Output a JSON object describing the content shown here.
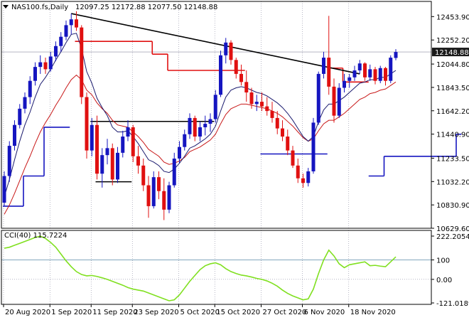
{
  "header": {
    "symbol_label": "NAS100.fs,Daily",
    "ohlc_label": "12097.25 12172.88 12077.50 12148.88"
  },
  "indicator": {
    "label": "CCI(40) 115.7224"
  },
  "colors": {
    "bull": "#1515c0",
    "bear": "#e01010",
    "grid": "#8a8aa0",
    "cci": "#80e020",
    "trendline": "#000000",
    "ema_fast": "#1a1a6e",
    "ema_slow": "#c81818",
    "tag_bg": "#1a1a1a",
    "tag_fg": "#ffffff"
  },
  "chart_data": [
    {
      "type": "candlestick",
      "price_axis": {
        "ticks": [
          "12453.90",
          "12252.20",
          "12044.80",
          "11843.50",
          "11642.20",
          "11440.90",
          "11233.50",
          "11032.20",
          "10830.90",
          "10629.60"
        ],
        "current_price": "12148.88",
        "range": [
          10629.6,
          12560
        ]
      },
      "date_axis": {
        "labels": [
          "20 Aug 2020",
          "1 Sep 2020",
          "11 Sep 2020",
          "23 Sep 2020",
          "5 Oct 2020",
          "15 Oct 2020",
          "27 Oct 2020",
          "6 Nov 2020",
          "18 Nov 2020"
        ]
      },
      "candles": [
        [
          10850,
          11120,
          10820,
          11080
        ],
        [
          11080,
          11380,
          11030,
          11340
        ],
        [
          11340,
          11560,
          11300,
          11520
        ],
        [
          11520,
          11700,
          11490,
          11660
        ],
        [
          11660,
          11800,
          11620,
          11760
        ],
        [
          11760,
          11940,
          11700,
          11900
        ],
        [
          11900,
          12060,
          11860,
          12020
        ],
        [
          12020,
          12120,
          11960,
          12060
        ],
        [
          12060,
          12100,
          11960,
          12000
        ],
        [
          12000,
          12150,
          11980,
          12110
        ],
        [
          12110,
          12240,
          12070,
          12200
        ],
        [
          12200,
          12320,
          12150,
          12280
        ],
        [
          12280,
          12420,
          12250,
          12380
        ],
        [
          12380,
          12480,
          12300,
          12430
        ],
        [
          12430,
          12500,
          12330,
          12360
        ],
        [
          12360,
          12380,
          11700,
          11760
        ],
        [
          11760,
          11800,
          11230,
          11300
        ],
        [
          11300,
          11580,
          11250,
          11520
        ],
        [
          11520,
          11600,
          11050,
          11100
        ],
        [
          11100,
          11320,
          10980,
          11260
        ],
        [
          11260,
          11400,
          11180,
          11320
        ],
        [
          11320,
          11360,
          11000,
          11050
        ],
        [
          11050,
          11330,
          11020,
          11280
        ],
        [
          11280,
          11470,
          11240,
          11420
        ],
        [
          11420,
          11560,
          11380,
          11500
        ],
        [
          11500,
          11520,
          11200,
          11250
        ],
        [
          11250,
          11340,
          11100,
          11170
        ],
        [
          11170,
          11230,
          10950,
          11000
        ],
        [
          11000,
          11080,
          10720,
          10820
        ],
        [
          10820,
          11120,
          10800,
          11070
        ],
        [
          11070,
          11120,
          10880,
          10950
        ],
        [
          10950,
          11060,
          10700,
          10790
        ],
        [
          10790,
          11030,
          10760,
          11000
        ],
        [
          11000,
          11280,
          10980,
          11230
        ],
        [
          11230,
          11380,
          11190,
          11330
        ],
        [
          11330,
          11480,
          11300,
          11440
        ],
        [
          11440,
          11620,
          11400,
          11580
        ],
        [
          11580,
          11600,
          11380,
          11420
        ],
        [
          11420,
          11550,
          11380,
          11500
        ],
        [
          11500,
          11600,
          11430,
          11530
        ],
        [
          11530,
          11620,
          11460,
          11570
        ],
        [
          11570,
          11820,
          11540,
          11780
        ],
        [
          11780,
          12160,
          11760,
          12120
        ],
        [
          12120,
          12270,
          12050,
          12230
        ],
        [
          12230,
          12250,
          12040,
          12080
        ],
        [
          12080,
          12100,
          11920,
          11960
        ],
        [
          11960,
          12040,
          11860,
          11890
        ],
        [
          11890,
          11990,
          11720,
          11800
        ],
        [
          11800,
          11840,
          11660,
          11700
        ],
        [
          11700,
          11780,
          11640,
          11720
        ],
        [
          11720,
          11800,
          11640,
          11680
        ],
        [
          11680,
          11760,
          11600,
          11640
        ],
        [
          11640,
          11720,
          11540,
          11580
        ],
        [
          11580,
          11640,
          11440,
          11490
        ],
        [
          11490,
          11560,
          11380,
          11420
        ],
        [
          11420,
          11480,
          11260,
          11300
        ],
        [
          11300,
          11340,
          11150,
          11170
        ],
        [
          11170,
          11230,
          11020,
          11060
        ],
        [
          11060,
          11100,
          10980,
          11020
        ],
        [
          11020,
          11150,
          10990,
          11120
        ],
        [
          11120,
          11580,
          11100,
          11540
        ],
        [
          11540,
          11980,
          11520,
          11960
        ],
        [
          11960,
          12150,
          11920,
          12100
        ],
        [
          12100,
          12460,
          11780,
          11850
        ],
        [
          11850,
          11920,
          11540,
          11600
        ],
        [
          11600,
          11880,
          11580,
          11840
        ],
        [
          11840,
          11960,
          11800,
          11900
        ],
        [
          11900,
          11960,
          11840,
          11930
        ],
        [
          11930,
          12030,
          11900,
          11990
        ],
        [
          11990,
          12080,
          11960,
          12050
        ],
        [
          12050,
          12060,
          11900,
          11930
        ],
        [
          11930,
          12040,
          11900,
          12000
        ],
        [
          12000,
          12020,
          11870,
          11900
        ],
        [
          11900,
          12030,
          11880,
          12010
        ],
        [
          12010,
          12020,
          11860,
          11900
        ],
        [
          11900,
          12120,
          11880,
          12100
        ],
        [
          12097.25,
          12172.88,
          12077.5,
          12148.88
        ]
      ],
      "trendline": {
        "from": [
          13,
          12480
        ],
        "to": [
          69,
          11960
        ]
      },
      "ema_fast": [
        10900,
        11050,
        11220,
        11380,
        11520,
        11630,
        11760,
        11870,
        11930,
        12000,
        12080,
        12150,
        12230,
        12300,
        12310,
        12180,
        11980,
        11880,
        11750,
        11670,
        11600,
        11500,
        11460,
        11460,
        11470,
        11420,
        11360,
        11290,
        11220,
        11200,
        11170,
        11120,
        11110,
        11140,
        11190,
        11250,
        11320,
        11340,
        11370,
        11400,
        11440,
        11510,
        11640,
        11760,
        11820,
        11840,
        11850,
        11840,
        11820,
        11800,
        11790,
        11770,
        11740,
        11710,
        11670,
        11620,
        11560,
        11490,
        11420,
        11380,
        11420,
        11550,
        11650,
        11700,
        11700,
        11730,
        11760,
        11800,
        11840,
        11880,
        11890,
        11910,
        11910,
        11930,
        11930,
        11960,
        11990
      ],
      "ema_slow": [
        10750,
        10830,
        10930,
        11040,
        11150,
        11250,
        11360,
        11460,
        11540,
        11610,
        11690,
        11760,
        11840,
        11910,
        11950,
        11910,
        11820,
        11780,
        11710,
        11660,
        11620,
        11560,
        11520,
        11510,
        11500,
        11460,
        11420,
        11370,
        11310,
        11280,
        11250,
        11200,
        11180,
        11190,
        11210,
        11240,
        11290,
        11310,
        11330,
        11360,
        11390,
        11440,
        11530,
        11610,
        11660,
        11680,
        11700,
        11700,
        11690,
        11680,
        11670,
        11660,
        11640,
        11620,
        11590,
        11550,
        11510,
        11460,
        11410,
        11380,
        11400,
        11470,
        11530,
        11560,
        11560,
        11590,
        11620,
        11660,
        11700,
        11740,
        11760,
        11790,
        11800,
        11820,
        11830,
        11860,
        11890
      ],
      "resistance_steps": [
        {
          "from": 14,
          "to": 29,
          "level": 12240
        },
        {
          "from": 29,
          "to": 32,
          "level": 12130
        },
        {
          "from": 32,
          "to": 47,
          "level": 11990
        },
        {
          "from": 63,
          "to": 66,
          "level": 12010
        },
        {
          "from": 66,
          "to": 71,
          "level": 11890
        }
      ],
      "support_steps": [
        {
          "from": 0,
          "to": 4,
          "level": 10820
        },
        {
          "from": 4,
          "to": 8,
          "level": 11080
        },
        {
          "from": 8,
          "to": 13,
          "level": 11500
        },
        {
          "from": 50,
          "to": 63,
          "level": 11270
        },
        {
          "from": 71,
          "to": 74,
          "level": 11080
        },
        {
          "from": 74,
          "to": 88,
          "level": 11250
        },
        {
          "from": 88,
          "to": 89,
          "level": 11440
        }
      ],
      "support_zones": [
        {
          "from": 17,
          "to": 41,
          "level": 11550
        },
        {
          "from": 18,
          "to": 25,
          "level": 11030
        }
      ]
    },
    {
      "type": "line",
      "name": "CCI(40)",
      "y_axis": {
        "ticks": [
          "222.2054",
          "100",
          "0.00",
          "-121.0189"
        ],
        "range": [
          -121.0189,
          222.2054
        ]
      },
      "values": [
        160,
        165,
        175,
        185,
        195,
        205,
        215,
        222,
        210,
        190,
        165,
        130,
        95,
        65,
        40,
        25,
        18,
        20,
        15,
        8,
        0,
        -10,
        -20,
        -30,
        -42,
        -50,
        -55,
        -60,
        -70,
        -80,
        -90,
        -100,
        -110,
        -105,
        -80,
        -45,
        -10,
        20,
        50,
        70,
        80,
        85,
        75,
        55,
        40,
        30,
        22,
        18,
        12,
        5,
        0,
        -8,
        -20,
        -35,
        -55,
        -72,
        -85,
        -95,
        -105,
        -100,
        -50,
        30,
        100,
        150,
        120,
        80,
        60,
        75,
        80,
        85,
        90,
        70,
        72,
        68,
        65,
        90,
        115.72
      ]
    }
  ]
}
